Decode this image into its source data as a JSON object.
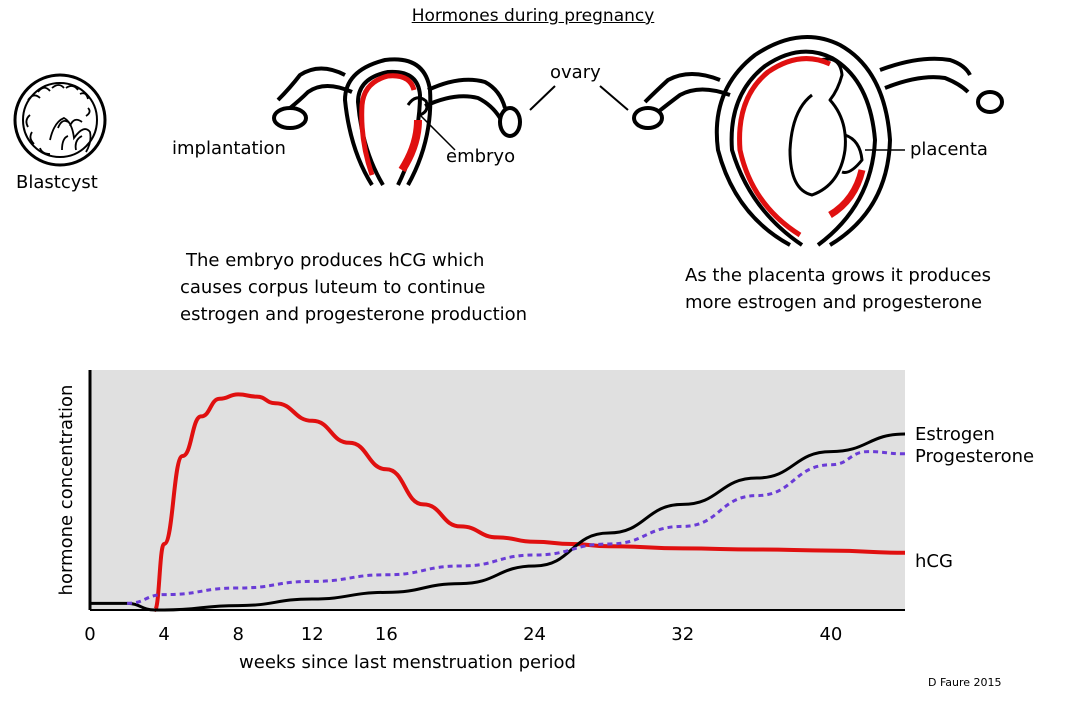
{
  "title": "Hormones during pregnancy",
  "illustration": {
    "labels": {
      "blastocyst": "Blastcyst",
      "implantation": "implantation",
      "embryo": "embryo",
      "ovary": "ovary",
      "placenta": "placenta"
    },
    "captions": {
      "left": [
        "The  embryo produces hCG  which",
        "causes corpus luteum to continue",
        "estrogen and progesterone production"
      ],
      "right": [
        "As the placenta grows it produces",
        "more estrogen and progesterone"
      ]
    },
    "colors": {
      "outline": "#000000",
      "lining": "#e01010"
    }
  },
  "chart_data": {
    "type": "line",
    "title": "",
    "xlabel": "weeks since last menstruation period",
    "ylabel": "hormone concentration",
    "x_ticks": [
      0,
      4,
      8,
      12,
      16,
      24,
      32,
      40
    ],
    "xlim": [
      0,
      44
    ],
    "ylim": [
      0,
      100
    ],
    "grid": false,
    "background": "#e0e0e0",
    "series": [
      {
        "name": "hCG",
        "color": "#e01010",
        "style": "solid",
        "x": [
          3.5,
          4,
          5,
          6,
          7,
          8,
          9,
          10,
          12,
          14,
          16,
          18,
          20,
          22,
          24,
          26,
          28,
          32,
          36,
          40,
          44
        ],
        "y": [
          0,
          30,
          70,
          88,
          96,
          98,
          97,
          94,
          86,
          76,
          64,
          48,
          38,
          33,
          31,
          30,
          29,
          28,
          27.5,
          27,
          26
        ]
      },
      {
        "name": "Estrogen",
        "color": "#000000",
        "style": "solid",
        "x": [
          0,
          2,
          3.5,
          4,
          8,
          12,
          16,
          20,
          24,
          28,
          32,
          36,
          40,
          44
        ],
        "y": [
          3,
          3,
          0,
          0,
          2,
          5,
          8,
          12,
          20,
          35,
          48,
          60,
          72,
          80
        ]
      },
      {
        "name": "Progesterone",
        "color": "#6a3cd6",
        "style": "dashed",
        "x": [
          2,
          4,
          8,
          12,
          16,
          20,
          24,
          28,
          32,
          36,
          40,
          42,
          44
        ],
        "y": [
          3,
          7,
          10,
          13,
          16,
          20,
          25,
          30,
          38,
          52,
          66,
          72,
          71
        ]
      }
    ],
    "legend": "right-inline",
    "legend_entries": [
      "Estrogen",
      "Progesterone",
      "hCG"
    ]
  },
  "credit": "D Faure 2015"
}
